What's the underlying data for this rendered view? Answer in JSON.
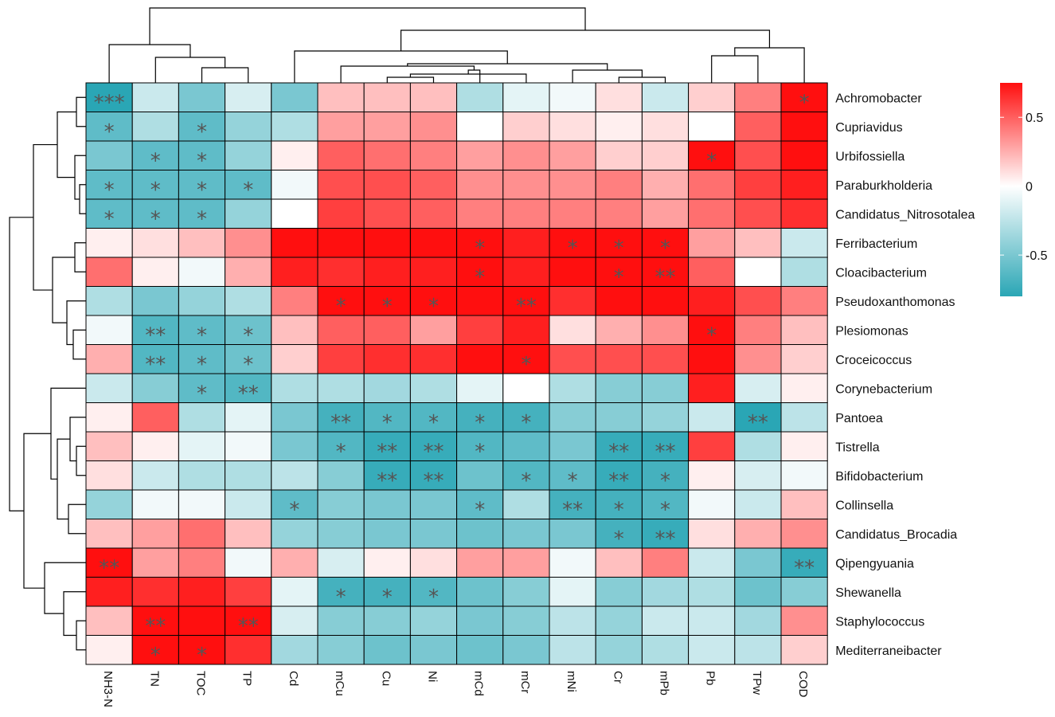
{
  "chart_data": {
    "type": "heatmap",
    "title": "",
    "columns": [
      "NH3-N",
      "TN",
      "TOC",
      "TP",
      "Cd",
      "mCu",
      "Cu",
      "Ni",
      "mCd",
      "mCr",
      "mNi",
      "Cr",
      "mPb",
      "Pb",
      "TPw",
      "COD"
    ],
    "rows": [
      "Achromobacter",
      "Cupriavidus",
      "Urbifossiella",
      "Paraburkholderia",
      "Candidatus_Nitrosotalea",
      "Ferribacterium",
      "Cloacibacterium",
      "Pseudoxanthomonas",
      "Plesiomonas",
      "Croceicoccus",
      "Corynebacterium",
      "Pantoea",
      "Tistrella",
      "Bifidobacterium",
      "Collinsella",
      "Candidatus_Brocadia",
      "Qipengyuania",
      "Shewanella",
      "Staphylococcus",
      "Mediterraneibacter"
    ],
    "values": [
      [
        -0.8,
        -0.2,
        -0.5,
        -0.15,
        -0.5,
        0.2,
        0.2,
        0.2,
        -0.3,
        -0.1,
        -0.05,
        0.1,
        -0.2,
        0.15,
        0.4,
        0.85
      ],
      [
        -0.6,
        -0.3,
        -0.6,
        -0.4,
        -0.3,
        0.3,
        0.3,
        0.35,
        0.0,
        0.15,
        0.1,
        0.05,
        0.1,
        0.0,
        0.5,
        0.75
      ],
      [
        -0.5,
        -0.6,
        -0.6,
        -0.4,
        0.05,
        0.5,
        0.45,
        0.4,
        0.3,
        0.35,
        0.3,
        0.15,
        0.15,
        0.85,
        0.55,
        0.75
      ],
      [
        -0.6,
        -0.6,
        -0.6,
        -0.6,
        -0.05,
        0.55,
        0.55,
        0.5,
        0.35,
        0.35,
        0.35,
        0.4,
        0.25,
        0.45,
        0.6,
        0.7
      ],
      [
        -0.6,
        -0.6,
        -0.6,
        -0.4,
        0.0,
        0.6,
        0.55,
        0.5,
        0.4,
        0.4,
        0.4,
        0.4,
        0.3,
        0.45,
        0.55,
        0.65
      ],
      [
        0.05,
        0.1,
        0.2,
        0.35,
        0.75,
        0.75,
        0.75,
        0.75,
        0.85,
        0.7,
        0.8,
        0.8,
        0.85,
        0.3,
        0.2,
        -0.2
      ],
      [
        0.45,
        0.05,
        -0.05,
        0.25,
        0.7,
        0.65,
        0.7,
        0.7,
        0.85,
        0.7,
        0.75,
        0.8,
        0.85,
        0.5,
        0.0,
        -0.3
      ],
      [
        -0.3,
        -0.5,
        -0.4,
        -0.3,
        0.4,
        0.8,
        0.8,
        0.8,
        0.85,
        0.85,
        0.65,
        0.75,
        0.75,
        0.7,
        0.55,
        0.4
      ],
      [
        -0.05,
        -0.65,
        -0.6,
        -0.55,
        0.2,
        0.5,
        0.5,
        0.3,
        0.6,
        0.7,
        0.1,
        0.25,
        0.35,
        0.8,
        0.4,
        0.2
      ],
      [
        0.25,
        -0.65,
        -0.6,
        -0.55,
        0.15,
        0.6,
        0.65,
        0.65,
        0.75,
        0.8,
        0.55,
        0.55,
        0.55,
        0.75,
        0.35,
        0.15
      ],
      [
        -0.2,
        -0.45,
        -0.6,
        -0.65,
        -0.3,
        -0.3,
        -0.35,
        -0.3,
        -0.1,
        0.0,
        -0.3,
        -0.45,
        -0.45,
        0.7,
        -0.15,
        0.05
      ],
      [
        0.05,
        0.5,
        -0.3,
        -0.1,
        -0.5,
        -0.7,
        -0.65,
        -0.65,
        -0.7,
        -0.7,
        -0.45,
        -0.45,
        -0.4,
        -0.2,
        -0.8,
        -0.25
      ],
      [
        0.2,
        0.05,
        -0.1,
        -0.05,
        -0.5,
        -0.65,
        -0.75,
        -0.75,
        -0.65,
        -0.6,
        -0.5,
        -0.75,
        -0.75,
        0.6,
        -0.3,
        0.05
      ],
      [
        0.1,
        -0.2,
        -0.3,
        -0.3,
        -0.25,
        -0.45,
        -0.75,
        -0.75,
        -0.55,
        -0.65,
        -0.6,
        -0.75,
        -0.7,
        0.05,
        -0.15,
        -0.05
      ],
      [
        -0.4,
        -0.05,
        -0.05,
        -0.2,
        -0.6,
        -0.45,
        -0.5,
        -0.5,
        -0.6,
        -0.3,
        -0.7,
        -0.7,
        -0.65,
        -0.05,
        -0.2,
        0.2
      ],
      [
        0.2,
        0.3,
        0.45,
        0.2,
        -0.4,
        -0.45,
        -0.5,
        -0.5,
        -0.55,
        -0.5,
        -0.5,
        -0.7,
        -0.75,
        0.1,
        0.25,
        0.35
      ],
      [
        0.9,
        0.3,
        0.4,
        -0.05,
        0.25,
        -0.15,
        0.05,
        0.1,
        0.3,
        0.3,
        -0.05,
        0.2,
        0.4,
        -0.2,
        -0.5,
        -0.75
      ],
      [
        0.7,
        0.65,
        0.7,
        0.6,
        -0.1,
        -0.7,
        -0.7,
        -0.65,
        -0.55,
        -0.45,
        -0.1,
        -0.45,
        -0.35,
        -0.3,
        -0.55,
        -0.45
      ],
      [
        0.2,
        0.85,
        0.75,
        0.85,
        -0.15,
        -0.45,
        -0.45,
        -0.4,
        -0.5,
        -0.45,
        -0.25,
        -0.4,
        -0.2,
        -0.2,
        -0.35,
        0.35
      ],
      [
        0.05,
        0.85,
        0.75,
        0.65,
        -0.35,
        -0.45,
        -0.55,
        -0.5,
        -0.55,
        -0.5,
        -0.25,
        -0.4,
        -0.3,
        -0.2,
        -0.25,
        0.15
      ]
    ],
    "significance": [
      [
        "***",
        "",
        "",
        "",
        "",
        "",
        "",
        "",
        "",
        "",
        "",
        "",
        "",
        "",
        "",
        "*"
      ],
      [
        "*",
        "",
        "*",
        "",
        "",
        "",
        "",
        "",
        "",
        "",
        "",
        "",
        "",
        "",
        "",
        ""
      ],
      [
        "",
        "*",
        "*",
        "",
        "",
        "",
        "",
        "",
        "",
        "",
        "",
        "",
        "",
        "*",
        "",
        ""
      ],
      [
        "*",
        "*",
        "*",
        "*",
        "",
        "",
        "",
        "",
        "",
        "",
        "",
        "",
        "",
        "",
        "",
        ""
      ],
      [
        "*",
        "*",
        "*",
        "",
        "",
        "",
        "",
        "",
        "",
        "",
        "",
        "",
        "",
        "",
        "",
        ""
      ],
      [
        "",
        "",
        "",
        "",
        "",
        "",
        "",
        "",
        "*",
        "",
        "*",
        "*",
        "*",
        "",
        "",
        ""
      ],
      [
        "",
        "",
        "",
        "",
        "",
        "",
        "",
        "",
        "*",
        "",
        "",
        "*",
        "**",
        "",
        "",
        ""
      ],
      [
        "",
        "",
        "",
        "",
        "",
        "*",
        "*",
        "*",
        "",
        "**",
        "",
        "",
        "",
        "",
        "",
        ""
      ],
      [
        "",
        "**",
        "*",
        "*",
        "",
        "",
        "",
        "",
        "",
        "",
        "",
        "",
        "",
        "*",
        "",
        ""
      ],
      [
        "",
        "**",
        "*",
        "*",
        "",
        "",
        "",
        "",
        "",
        "*",
        "",
        "",
        "",
        "",
        "",
        ""
      ],
      [
        "",
        "",
        "*",
        "**",
        "",
        "",
        "",
        "",
        "",
        "",
        "",
        "",
        "",
        "",
        "",
        ""
      ],
      [
        "",
        "",
        "",
        "",
        "",
        "**",
        "*",
        "*",
        "*",
        "*",
        "",
        "",
        "",
        "",
        "**",
        ""
      ],
      [
        "",
        "",
        "",
        "",
        "",
        "*",
        "**",
        "**",
        "*",
        "",
        "",
        "**",
        "**",
        "",
        "",
        ""
      ],
      [
        "",
        "",
        "",
        "",
        "",
        "",
        "**",
        "**",
        "",
        "*",
        "*",
        "**",
        "*",
        "",
        "",
        ""
      ],
      [
        "",
        "",
        "",
        "",
        "*",
        "",
        "",
        "",
        "*",
        "",
        "**",
        "*",
        "*",
        "",
        "",
        ""
      ],
      [
        "",
        "",
        "",
        "",
        "",
        "",
        "",
        "",
        "",
        "",
        "",
        "*",
        "**",
        "",
        "",
        ""
      ],
      [
        "**",
        "",
        "",
        "",
        "",
        "",
        "",
        "",
        "",
        "",
        "",
        "",
        "",
        "",
        "",
        "**"
      ],
      [
        "",
        "",
        "",
        "",
        "",
        "*",
        "*",
        "*",
        "",
        "",
        "",
        "",
        "",
        "",
        "",
        ""
      ],
      [
        "",
        "**",
        "",
        "**",
        "",
        "",
        "",
        "",
        "",
        "",
        "",
        "",
        "",
        "",
        "",
        ""
      ],
      [
        "",
        "*",
        "*",
        "",
        "",
        "",
        "",
        "",
        "",
        "",
        "",
        "",
        "",
        "",
        "",
        ""
      ]
    ],
    "legend": {
      "ticks": [
        0.5,
        0,
        -0.5
      ],
      "tick_labels": [
        "0.5",
        "0",
        "-0.5"
      ],
      "range": [
        -0.8,
        0.75
      ],
      "placement": "right"
    },
    "colors": {
      "low": "#2aa6b5",
      "mid": "#ffffff",
      "high": "#ff0f0f"
    }
  }
}
